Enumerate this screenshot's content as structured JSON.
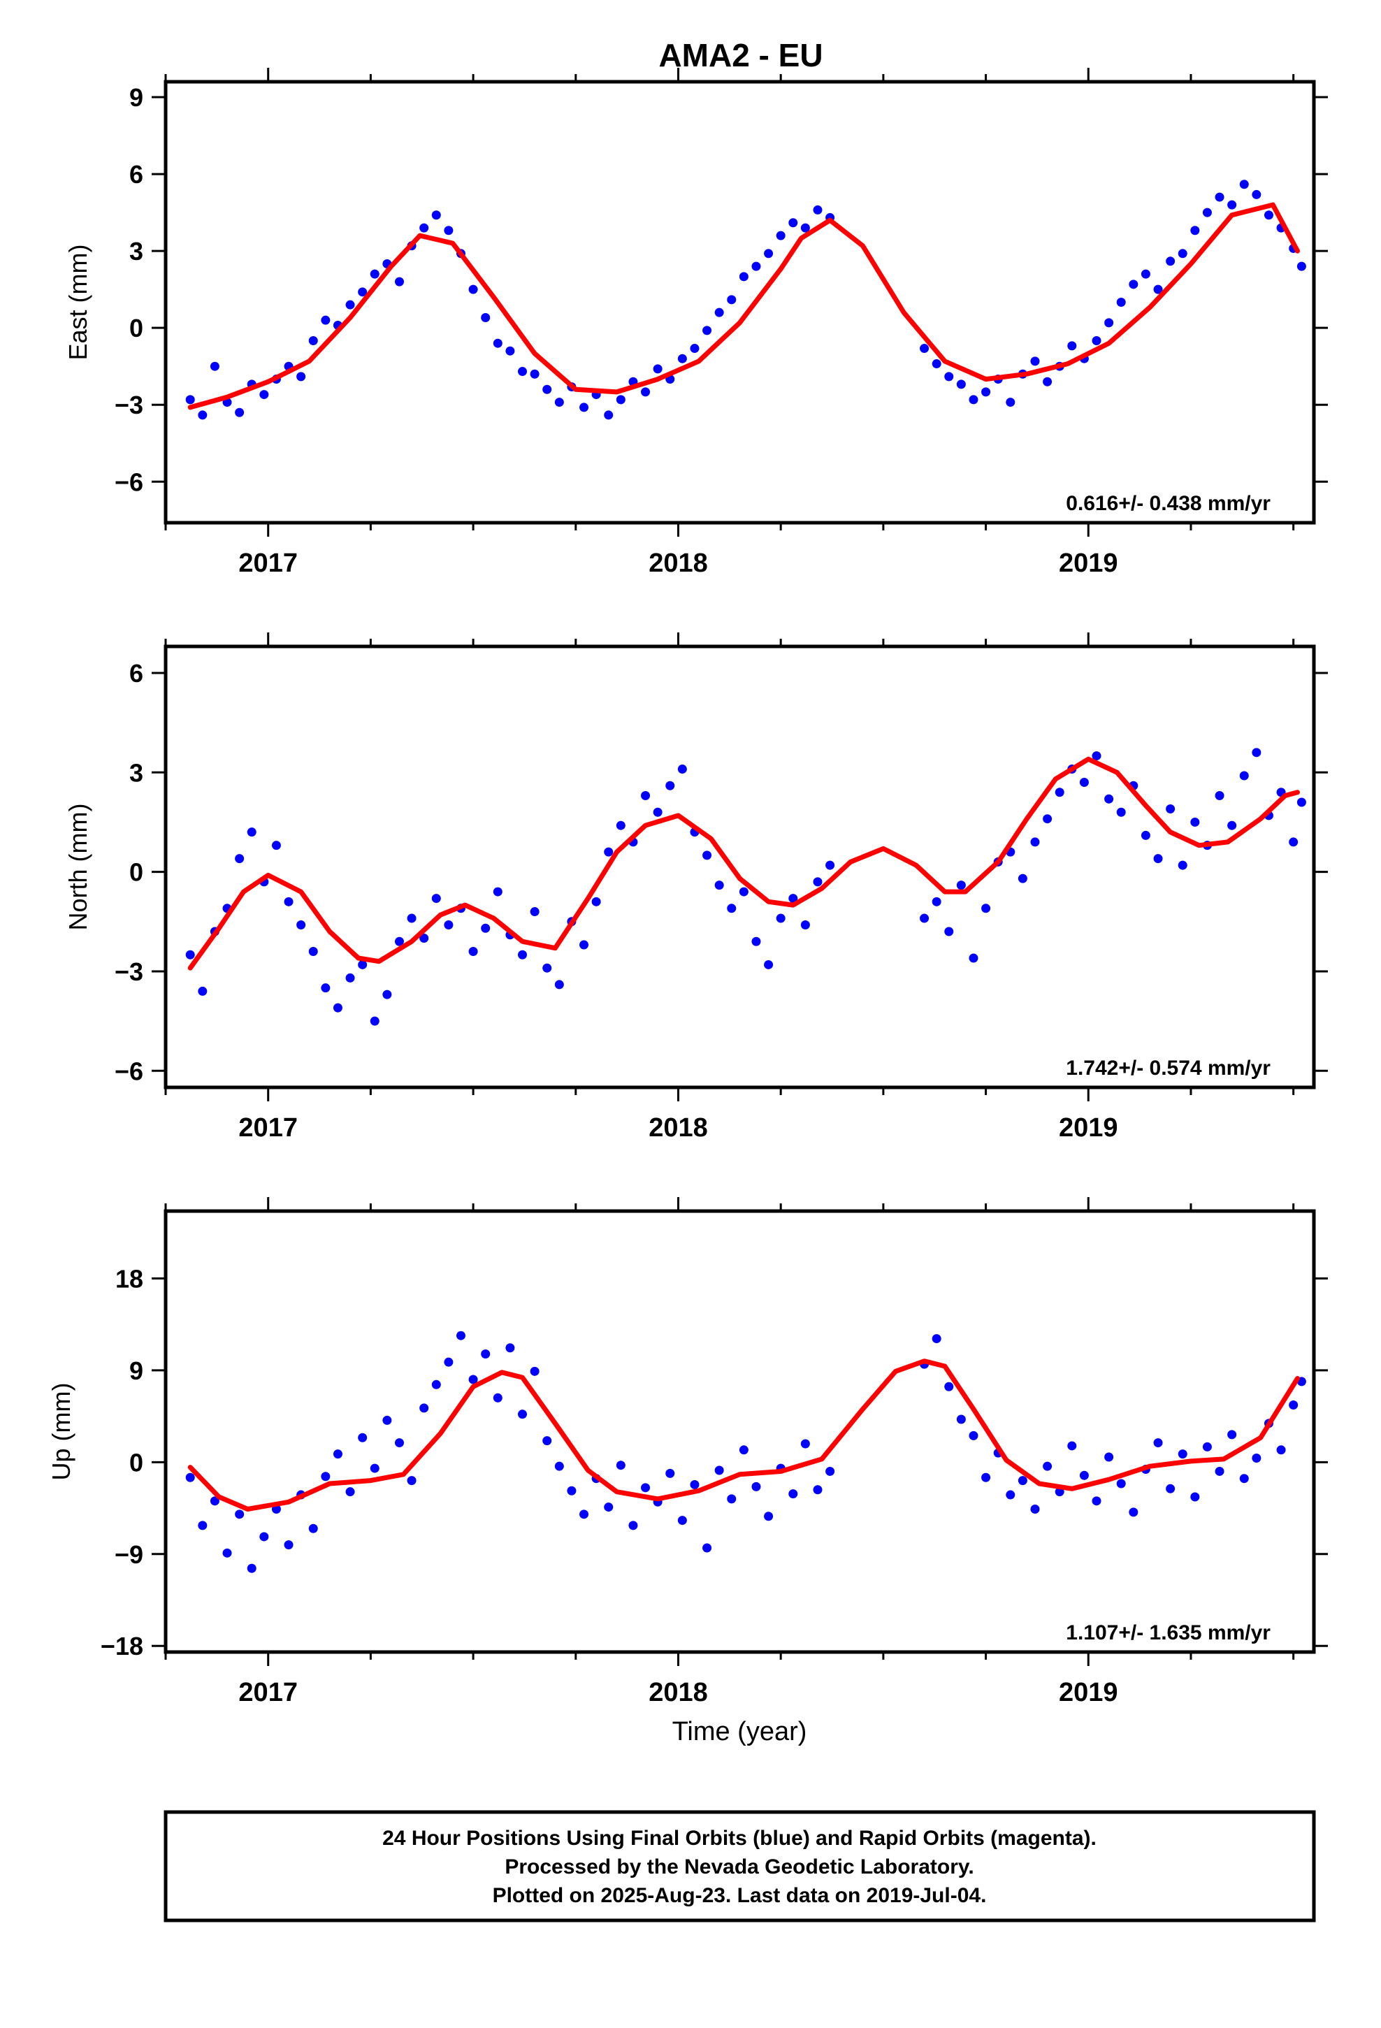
{
  "title": "AMA2 - EU",
  "x_label": "Time (year)",
  "footer": {
    "line1": "24 Hour Positions Using Final Orbits (blue) and Rapid Orbits (magenta).",
    "line2": "Processed by the Nevada Geodetic Laboratory.",
    "line3": "Plotted on 2025-Aug-23. Last data on 2019-Jul-04."
  },
  "colors": {
    "points": "#0000ff",
    "model": "#ff0000",
    "frame": "#000000"
  },
  "chart_data": [
    {
      "type": "scatter",
      "title": "AMA2 - EU",
      "ylabel": "East (mm)",
      "xlim": [
        2016.75,
        2019.55
      ],
      "ylim": [
        -7.6,
        9.6
      ],
      "xticks": [
        2017,
        2018,
        2019
      ],
      "yticks": [
        -6,
        -3,
        0,
        3,
        6,
        9
      ],
      "rate_label": "0.616+/- 0.438 mm/yr",
      "grid": false,
      "series": [
        {
          "kind": "points",
          "x": [
            2016.81,
            2016.84,
            2016.87,
            2016.9,
            2016.93,
            2016.96,
            2016.99,
            2017.02,
            2017.05,
            2017.08,
            2017.11,
            2017.14,
            2017.17,
            2017.2,
            2017.23,
            2017.26,
            2017.29,
            2017.32,
            2017.35,
            2017.38,
            2017.41,
            2017.44,
            2017.47,
            2017.5,
            2017.53,
            2017.56,
            2017.59,
            2017.62,
            2017.65,
            2017.68,
            2017.71,
            2017.74,
            2017.77,
            2017.8,
            2017.83,
            2017.86,
            2017.89,
            2017.92,
            2017.95,
            2017.98,
            2018.01,
            2018.04,
            2018.07,
            2018.1,
            2018.13,
            2018.16,
            2018.19,
            2018.22,
            2018.25,
            2018.28,
            2018.31,
            2018.34,
            2018.37,
            2018.6,
            2018.63,
            2018.66,
            2018.69,
            2018.72,
            2018.75,
            2018.78,
            2018.81,
            2018.84,
            2018.87,
            2018.9,
            2018.93,
            2018.96,
            2018.99,
            2019.02,
            2019.05,
            2019.08,
            2019.11,
            2019.14,
            2019.17,
            2019.2,
            2019.23,
            2019.26,
            2019.29,
            2019.32,
            2019.35,
            2019.38,
            2019.41,
            2019.44,
            2019.47,
            2019.5,
            2019.52
          ],
          "y": [
            -2.8,
            -3.4,
            -1.5,
            -2.9,
            -3.3,
            -2.2,
            -2.6,
            -2.0,
            -1.5,
            -1.9,
            -0.5,
            0.3,
            0.1,
            0.9,
            1.4,
            2.1,
            2.5,
            1.8,
            3.2,
            3.9,
            4.4,
            3.8,
            2.9,
            1.5,
            0.4,
            -0.6,
            -0.9,
            -1.7,
            -1.8,
            -2.4,
            -2.9,
            -2.3,
            -3.1,
            -2.6,
            -3.4,
            -2.8,
            -2.1,
            -2.5,
            -1.6,
            -2.0,
            -1.2,
            -0.8,
            -0.1,
            0.6,
            1.1,
            2.0,
            2.4,
            2.9,
            3.6,
            4.1,
            3.9,
            4.6,
            4.3,
            -0.8,
            -1.4,
            -1.9,
            -2.2,
            -2.8,
            -2.5,
            -2.0,
            -2.9,
            -1.8,
            -1.3,
            -2.1,
            -1.5,
            -0.7,
            -1.2,
            -0.5,
            0.2,
            1.0,
            1.7,
            2.1,
            1.5,
            2.6,
            2.9,
            3.8,
            4.5,
            5.1,
            4.8,
            5.6,
            5.2,
            4.4,
            3.9,
            3.1,
            2.4
          ]
        },
        {
          "kind": "line",
          "name": "model",
          "x": [
            2016.81,
            2016.9,
            2017.0,
            2017.1,
            2017.2,
            2017.3,
            2017.37,
            2017.45,
            2017.55,
            2017.65,
            2017.75,
            2017.85,
            2017.95,
            2018.05,
            2018.15,
            2018.25,
            2018.3,
            2018.37,
            2018.45,
            2018.55,
            2018.65,
            2018.75,
            2018.85,
            2018.95,
            2019.05,
            2019.15,
            2019.25,
            2019.35,
            2019.45,
            2019.51
          ],
          "y": [
            -3.1,
            -2.7,
            -2.1,
            -1.3,
            0.4,
            2.4,
            3.6,
            3.3,
            1.2,
            -1.0,
            -2.4,
            -2.5,
            -2.0,
            -1.3,
            0.2,
            2.3,
            3.5,
            4.2,
            3.2,
            0.6,
            -1.3,
            -2.0,
            -1.8,
            -1.4,
            -0.6,
            0.8,
            2.5,
            4.4,
            4.8,
            3.0
          ]
        }
      ]
    },
    {
      "type": "scatter",
      "ylabel": "North (mm)",
      "xlim": [
        2016.75,
        2019.55
      ],
      "ylim": [
        -6.5,
        6.8
      ],
      "xticks": [
        2017,
        2018,
        2019
      ],
      "yticks": [
        -6,
        -3,
        0,
        3,
        6
      ],
      "rate_label": "1.742+/- 0.574 mm/yr",
      "grid": false,
      "series": [
        {
          "kind": "points",
          "x": [
            2016.81,
            2016.84,
            2016.87,
            2016.9,
            2016.93,
            2016.96,
            2016.99,
            2017.02,
            2017.05,
            2017.08,
            2017.11,
            2017.14,
            2017.17,
            2017.2,
            2017.23,
            2017.26,
            2017.29,
            2017.32,
            2017.35,
            2017.38,
            2017.41,
            2017.44,
            2017.47,
            2017.5,
            2017.53,
            2017.56,
            2017.59,
            2017.62,
            2017.65,
            2017.68,
            2017.71,
            2017.74,
            2017.77,
            2017.8,
            2017.83,
            2017.86,
            2017.89,
            2017.92,
            2017.95,
            2017.98,
            2018.01,
            2018.04,
            2018.07,
            2018.1,
            2018.13,
            2018.16,
            2018.19,
            2018.22,
            2018.25,
            2018.28,
            2018.31,
            2018.34,
            2018.37,
            2018.6,
            2018.63,
            2018.66,
            2018.69,
            2018.72,
            2018.75,
            2018.78,
            2018.81,
            2018.84,
            2018.87,
            2018.9,
            2018.93,
            2018.96,
            2018.99,
            2019.02,
            2019.05,
            2019.08,
            2019.11,
            2019.14,
            2019.17,
            2019.2,
            2019.23,
            2019.26,
            2019.29,
            2019.32,
            2019.35,
            2019.38,
            2019.41,
            2019.44,
            2019.47,
            2019.5,
            2019.52
          ],
          "y": [
            -2.5,
            -3.6,
            -1.8,
            -1.1,
            0.4,
            1.2,
            -0.3,
            0.8,
            -0.9,
            -1.6,
            -2.4,
            -3.5,
            -4.1,
            -3.2,
            -2.8,
            -4.5,
            -3.7,
            -2.1,
            -1.4,
            -2.0,
            -0.8,
            -1.6,
            -1.1,
            -2.4,
            -1.7,
            -0.6,
            -1.9,
            -2.5,
            -1.2,
            -2.9,
            -3.4,
            -1.5,
            -2.2,
            -0.9,
            0.6,
            1.4,
            0.9,
            2.3,
            1.8,
            2.6,
            3.1,
            1.2,
            0.5,
            -0.4,
            -1.1,
            -0.6,
            -2.1,
            -2.8,
            -1.4,
            -0.8,
            -1.6,
            -0.3,
            0.2,
            -1.4,
            -0.9,
            -1.8,
            -0.4,
            -2.6,
            -1.1,
            0.3,
            0.6,
            -0.2,
            0.9,
            1.6,
            2.4,
            3.1,
            2.7,
            3.5,
            2.2,
            1.8,
            2.6,
            1.1,
            0.4,
            1.9,
            0.2,
            1.5,
            0.8,
            2.3,
            1.4,
            2.9,
            3.6,
            1.7,
            2.4,
            0.9,
            2.1
          ]
        },
        {
          "kind": "line",
          "name": "model",
          "x": [
            2016.81,
            2016.88,
            2016.94,
            2017.0,
            2017.08,
            2017.15,
            2017.22,
            2017.27,
            2017.35,
            2017.42,
            2017.48,
            2017.55,
            2017.62,
            2017.7,
            2017.78,
            2017.85,
            2017.92,
            2018.0,
            2018.08,
            2018.15,
            2018.22,
            2018.28,
            2018.35,
            2018.42,
            2018.5,
            2018.58,
            2018.65,
            2018.7,
            2018.78,
            2018.85,
            2018.92,
            2019.0,
            2019.07,
            2019.14,
            2019.2,
            2019.27,
            2019.34,
            2019.42,
            2019.48,
            2019.51
          ],
          "y": [
            -2.9,
            -1.7,
            -0.6,
            -0.1,
            -0.6,
            -1.8,
            -2.6,
            -2.7,
            -2.1,
            -1.3,
            -1.0,
            -1.4,
            -2.1,
            -2.3,
            -0.8,
            0.6,
            1.4,
            1.7,
            1.0,
            -0.2,
            -0.9,
            -1.0,
            -0.5,
            0.3,
            0.7,
            0.2,
            -0.6,
            -0.6,
            0.3,
            1.6,
            2.8,
            3.4,
            3.0,
            2.0,
            1.2,
            0.8,
            0.9,
            1.6,
            2.3,
            2.4
          ]
        }
      ]
    },
    {
      "type": "scatter",
      "ylabel": "Up (mm)",
      "xlim": [
        2016.75,
        2019.55
      ],
      "ylim": [
        -18.6,
        24.6
      ],
      "xticks": [
        2017,
        2018,
        2019
      ],
      "yticks": [
        -18,
        -9,
        0,
        9,
        18
      ],
      "rate_label": "1.107+/- 1.635 mm/yr",
      "grid": false,
      "series": [
        {
          "kind": "points",
          "x": [
            2016.81,
            2016.84,
            2016.87,
            2016.9,
            2016.93,
            2016.96,
            2016.99,
            2017.02,
            2017.05,
            2017.08,
            2017.11,
            2017.14,
            2017.17,
            2017.2,
            2017.23,
            2017.26,
            2017.29,
            2017.32,
            2017.35,
            2017.38,
            2017.41,
            2017.44,
            2017.47,
            2017.5,
            2017.53,
            2017.56,
            2017.59,
            2017.62,
            2017.65,
            2017.68,
            2017.71,
            2017.74,
            2017.77,
            2017.8,
            2017.83,
            2017.86,
            2017.89,
            2017.92,
            2017.95,
            2017.98,
            2018.01,
            2018.04,
            2018.07,
            2018.1,
            2018.13,
            2018.16,
            2018.19,
            2018.22,
            2018.25,
            2018.28,
            2018.31,
            2018.34,
            2018.37,
            2018.6,
            2018.63,
            2018.66,
            2018.69,
            2018.72,
            2018.75,
            2018.78,
            2018.81,
            2018.84,
            2018.87,
            2018.9,
            2018.93,
            2018.96,
            2018.99,
            2019.02,
            2019.05,
            2019.08,
            2019.11,
            2019.14,
            2019.17,
            2019.2,
            2019.23,
            2019.26,
            2019.29,
            2019.32,
            2019.35,
            2019.38,
            2019.41,
            2019.44,
            2019.47,
            2019.5,
            2019.52
          ],
          "y": [
            -1.5,
            -6.2,
            -3.8,
            -8.9,
            -5.1,
            -10.4,
            -7.3,
            -4.6,
            -8.1,
            -3.2,
            -6.5,
            -1.4,
            0.8,
            -2.9,
            2.4,
            -0.6,
            4.1,
            1.9,
            -1.8,
            5.3,
            7.6,
            9.8,
            12.4,
            8.1,
            10.6,
            6.3,
            11.2,
            4.7,
            8.9,
            2.1,
            -0.4,
            -2.8,
            -5.1,
            -1.6,
            -4.4,
            -0.3,
            -6.2,
            -2.5,
            -3.9,
            -1.1,
            -5.7,
            -2.2,
            -8.4,
            -0.8,
            -3.6,
            1.2,
            -2.4,
            -5.3,
            -0.6,
            -3.1,
            1.8,
            -2.7,
            -0.9,
            9.6,
            12.1,
            7.4,
            4.2,
            2.6,
            -1.5,
            0.9,
            -3.2,
            -1.8,
            -4.6,
            -0.4,
            -2.9,
            1.6,
            -1.3,
            -3.8,
            0.5,
            -2.1,
            -4.9,
            -0.7,
            1.9,
            -2.6,
            0.8,
            -3.4,
            1.5,
            -0.9,
            2.7,
            -1.6,
            0.4,
            3.8,
            1.2,
            5.6,
            7.9
          ]
        },
        {
          "kind": "line",
          "name": "model",
          "x": [
            2016.81,
            2016.88,
            2016.95,
            2017.05,
            2017.15,
            2017.25,
            2017.33,
            2017.42,
            2017.5,
            2017.57,
            2017.62,
            2017.7,
            2017.78,
            2017.85,
            2017.95,
            2018.05,
            2018.15,
            2018.25,
            2018.35,
            2018.45,
            2018.53,
            2018.6,
            2018.65,
            2018.72,
            2018.8,
            2018.88,
            2018.96,
            2019.05,
            2019.15,
            2019.25,
            2019.33,
            2019.42,
            2019.51
          ],
          "y": [
            -0.5,
            -3.4,
            -4.6,
            -3.9,
            -2.1,
            -1.8,
            -1.2,
            2.8,
            7.4,
            8.8,
            8.3,
            3.8,
            -0.8,
            -2.9,
            -3.6,
            -2.8,
            -1.2,
            -0.9,
            0.3,
            5.2,
            8.9,
            9.9,
            9.4,
            5.2,
            0.2,
            -2.1,
            -2.6,
            -1.7,
            -0.4,
            0.1,
            0.3,
            2.4,
            8.2
          ]
        }
      ]
    }
  ]
}
